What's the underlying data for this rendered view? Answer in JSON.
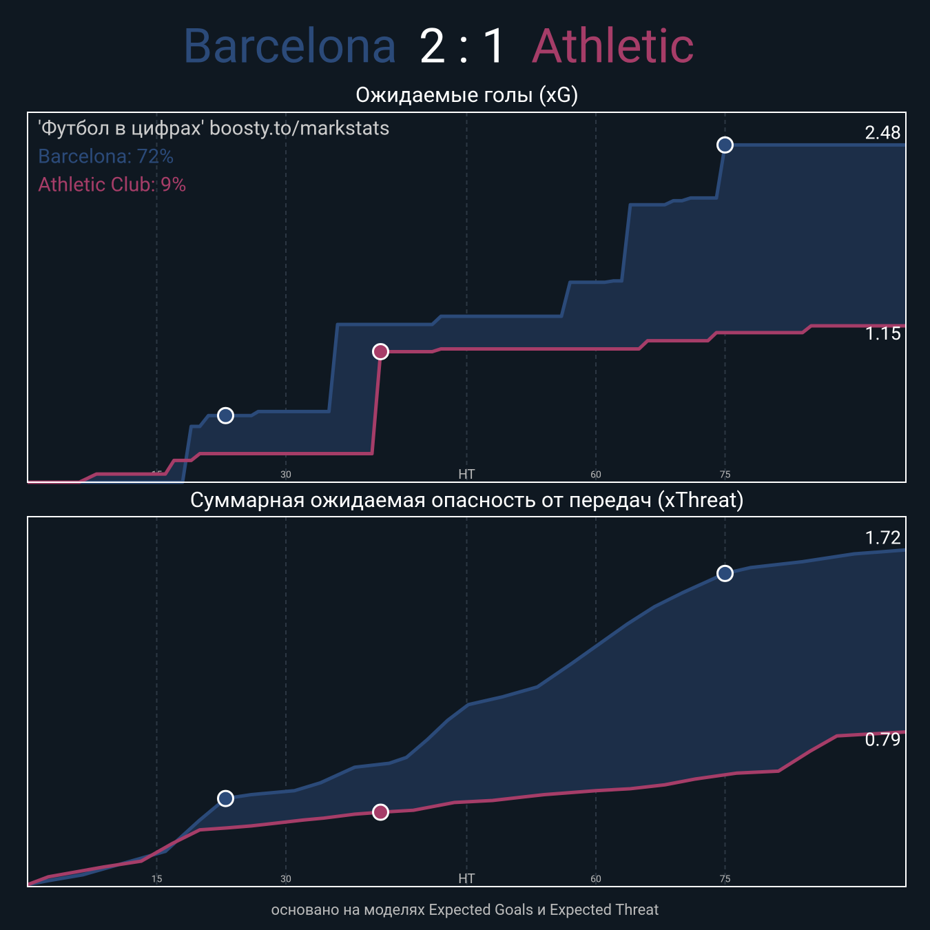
{
  "header": {
    "home": "Barcelona",
    "score": "2 : 1",
    "away": "Athletic"
  },
  "footer": "основано на моделях Expected Goals и Expected Threat",
  "chart_data": [
    {
      "type": "line",
      "title": "Ожидаемые голы (xG)",
      "annotations": [
        "'Футбол в цифрах' boosty.to/markstats",
        "Barcelona: 72%",
        "Athletic Club: 9%"
      ],
      "xlim": [
        0,
        102
      ],
      "ylim": [
        0,
        2.72
      ],
      "xticks": [
        15,
        30,
        {
          "value": 51,
          "label": "HT"
        },
        {
          "value": 66,
          "label": "60"
        },
        {
          "value": 81,
          "label": "75"
        }
      ],
      "grid": true,
      "fill_color": "#1c2e48",
      "series": [
        {
          "name": "Barcelona",
          "color": "#2b4a79",
          "x": [
            0,
            18,
            19,
            20,
            21,
            26,
            26.8,
            35,
            36,
            47,
            48,
            62,
            63,
            67,
            68,
            69,
            70,
            74,
            75,
            76,
            77,
            80,
            81,
            102
          ],
          "values": [
            0,
            0,
            0.41,
            0.41,
            0.49,
            0.49,
            0.52,
            0.52,
            1.16,
            1.16,
            1.22,
            1.22,
            1.47,
            1.47,
            1.48,
            1.48,
            2.04,
            2.04,
            2.07,
            2.07,
            2.09,
            2.09,
            2.48,
            2.48
          ],
          "goals_x": [
            23,
            81
          ]
        },
        {
          "name": "Athletic Club",
          "color": "#a63d68",
          "x": [
            0,
            6,
            8,
            16,
            17,
            19,
            20,
            40,
            41,
            47,
            48,
            71,
            72,
            79,
            80,
            90,
            91,
            102
          ],
          "values": [
            0,
            0,
            0.06,
            0.06,
            0.16,
            0.16,
            0.21,
            0.21,
            0.96,
            0.96,
            0.98,
            0.98,
            1.04,
            1.04,
            1.1,
            1.1,
            1.15,
            1.15
          ],
          "goals_x": [
            41
          ]
        }
      ]
    },
    {
      "type": "line",
      "title": "Суммарная ожидаемая опасность от передач (xThreat)",
      "xlim": [
        0,
        102
      ],
      "ylim": [
        0,
        1.89
      ],
      "xticks": [
        15,
        30,
        {
          "value": 51,
          "label": "HT"
        },
        {
          "value": 66,
          "label": "60"
        },
        {
          "value": 81,
          "label": "75"
        }
      ],
      "grid": true,
      "fill_color": "#1c2e48",
      "series": [
        {
          "name": "Barcelona",
          "color": "#2b4a79",
          "x": [
            0,
            2.4,
            6.4,
            12,
            16,
            20,
            23,
            26,
            31,
            34,
            38,
            42,
            44,
            46.4,
            48.8,
            51.2,
            55.2,
            59.2,
            63.2,
            66.4,
            69.6,
            72.8,
            76,
            81,
            84,
            90,
            96,
            102
          ],
          "values": [
            0.01,
            0.03,
            0.06,
            0.13,
            0.18,
            0.34,
            0.45,
            0.47,
            0.49,
            0.53,
            0.61,
            0.63,
            0.66,
            0.75,
            0.85,
            0.93,
            0.97,
            1.02,
            1.14,
            1.24,
            1.34,
            1.43,
            1.5,
            1.6,
            1.63,
            1.66,
            1.7,
            1.72
          ],
          "goals_x": [
            23,
            81
          ]
        },
        {
          "name": "Athletic Club",
          "color": "#a63d68",
          "x": [
            0,
            2.4,
            8.8,
            13.2,
            16.8,
            20,
            23.2,
            26,
            32,
            34.4,
            38,
            41,
            44.8,
            49.6,
            54,
            60,
            66,
            70,
            74,
            77.6,
            82.4,
            87.2,
            90.8,
            94,
            102
          ],
          "values": [
            0.01,
            0.05,
            0.1,
            0.13,
            0.22,
            0.29,
            0.3,
            0.31,
            0.34,
            0.35,
            0.37,
            0.38,
            0.39,
            0.43,
            0.44,
            0.47,
            0.49,
            0.5,
            0.52,
            0.55,
            0.58,
            0.59,
            0.69,
            0.77,
            0.79
          ],
          "goals_x": [
            41
          ]
        }
      ]
    }
  ]
}
